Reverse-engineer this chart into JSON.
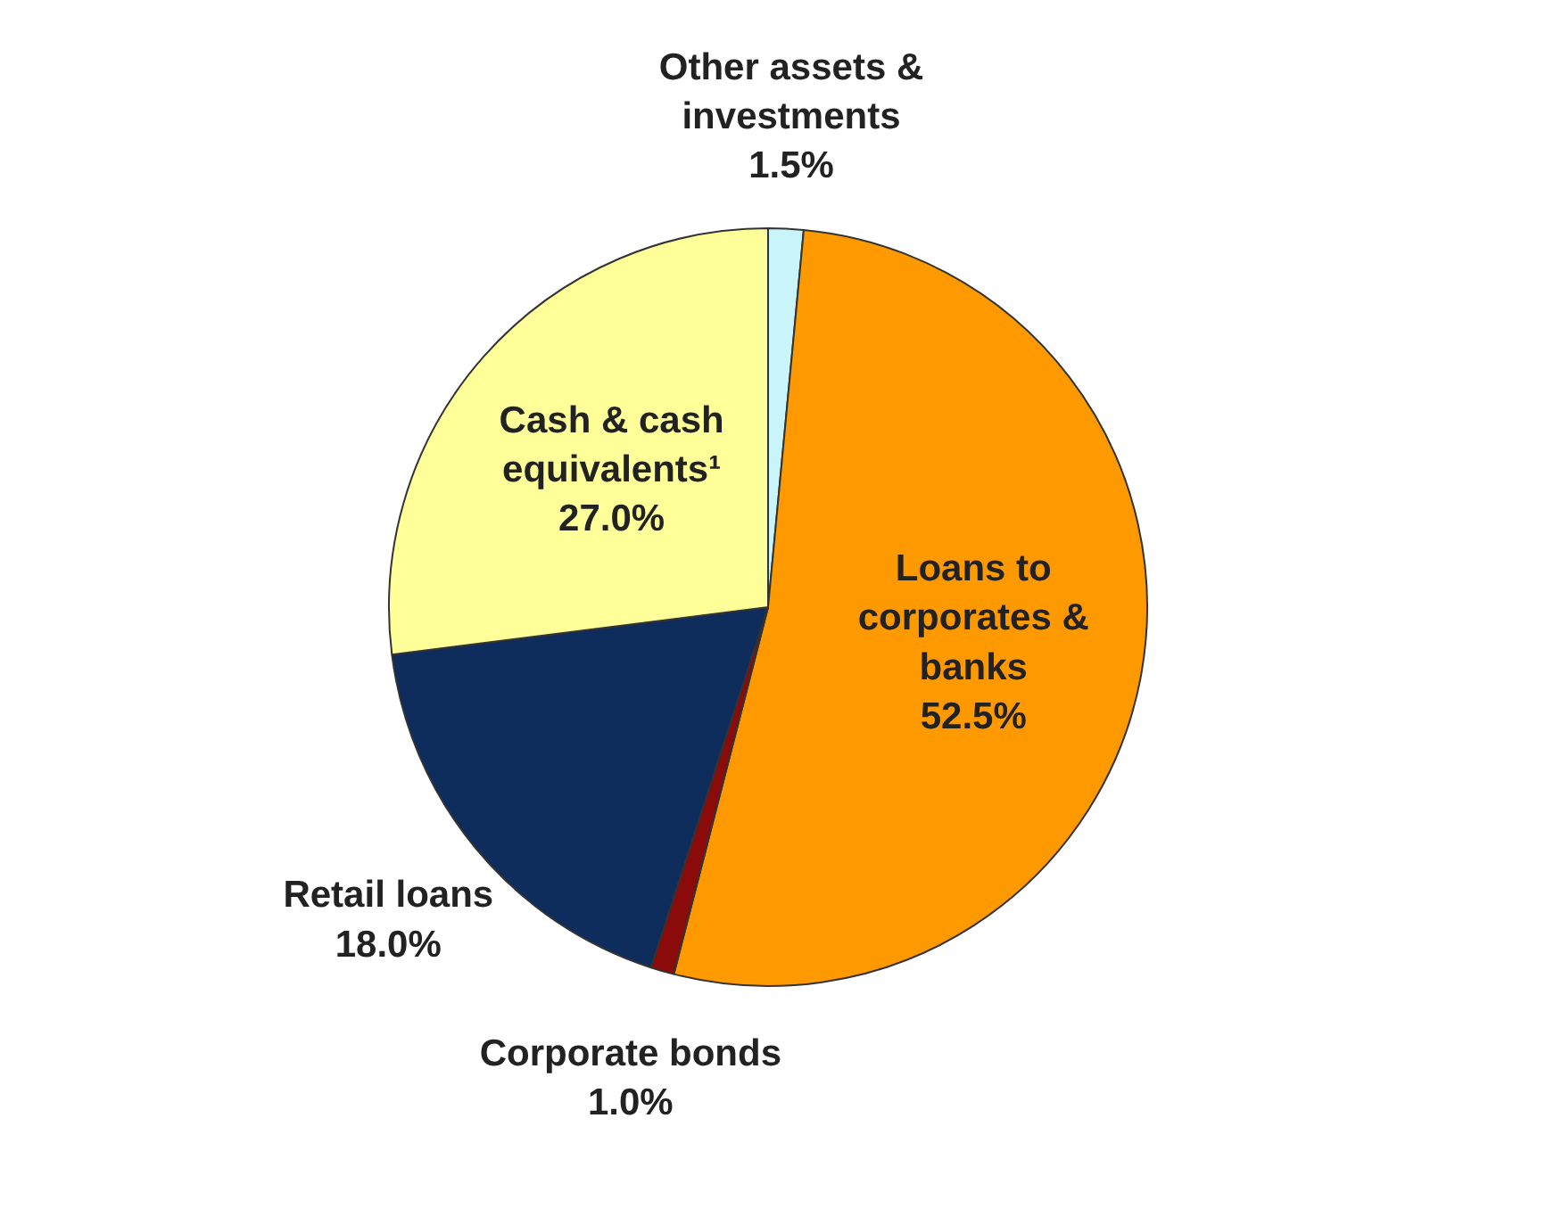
{
  "chart_data": {
    "type": "pie",
    "categories": [
      "Other assets & investments",
      "Loans to corporates & banks",
      "Corporate bonds",
      "Retail loans",
      "Cash & cash equivalents¹"
    ],
    "values": [
      1.5,
      52.5,
      1.0,
      18.0,
      27.0
    ],
    "colors": [
      "#c8f4fa",
      "#ff9900",
      "#8b0a0a",
      "#0f2d5c",
      "#ffff99"
    ],
    "value_labels": [
      "1.5%",
      "52.5%",
      "1.0%",
      "18.0%",
      "27.0%"
    ]
  }
}
